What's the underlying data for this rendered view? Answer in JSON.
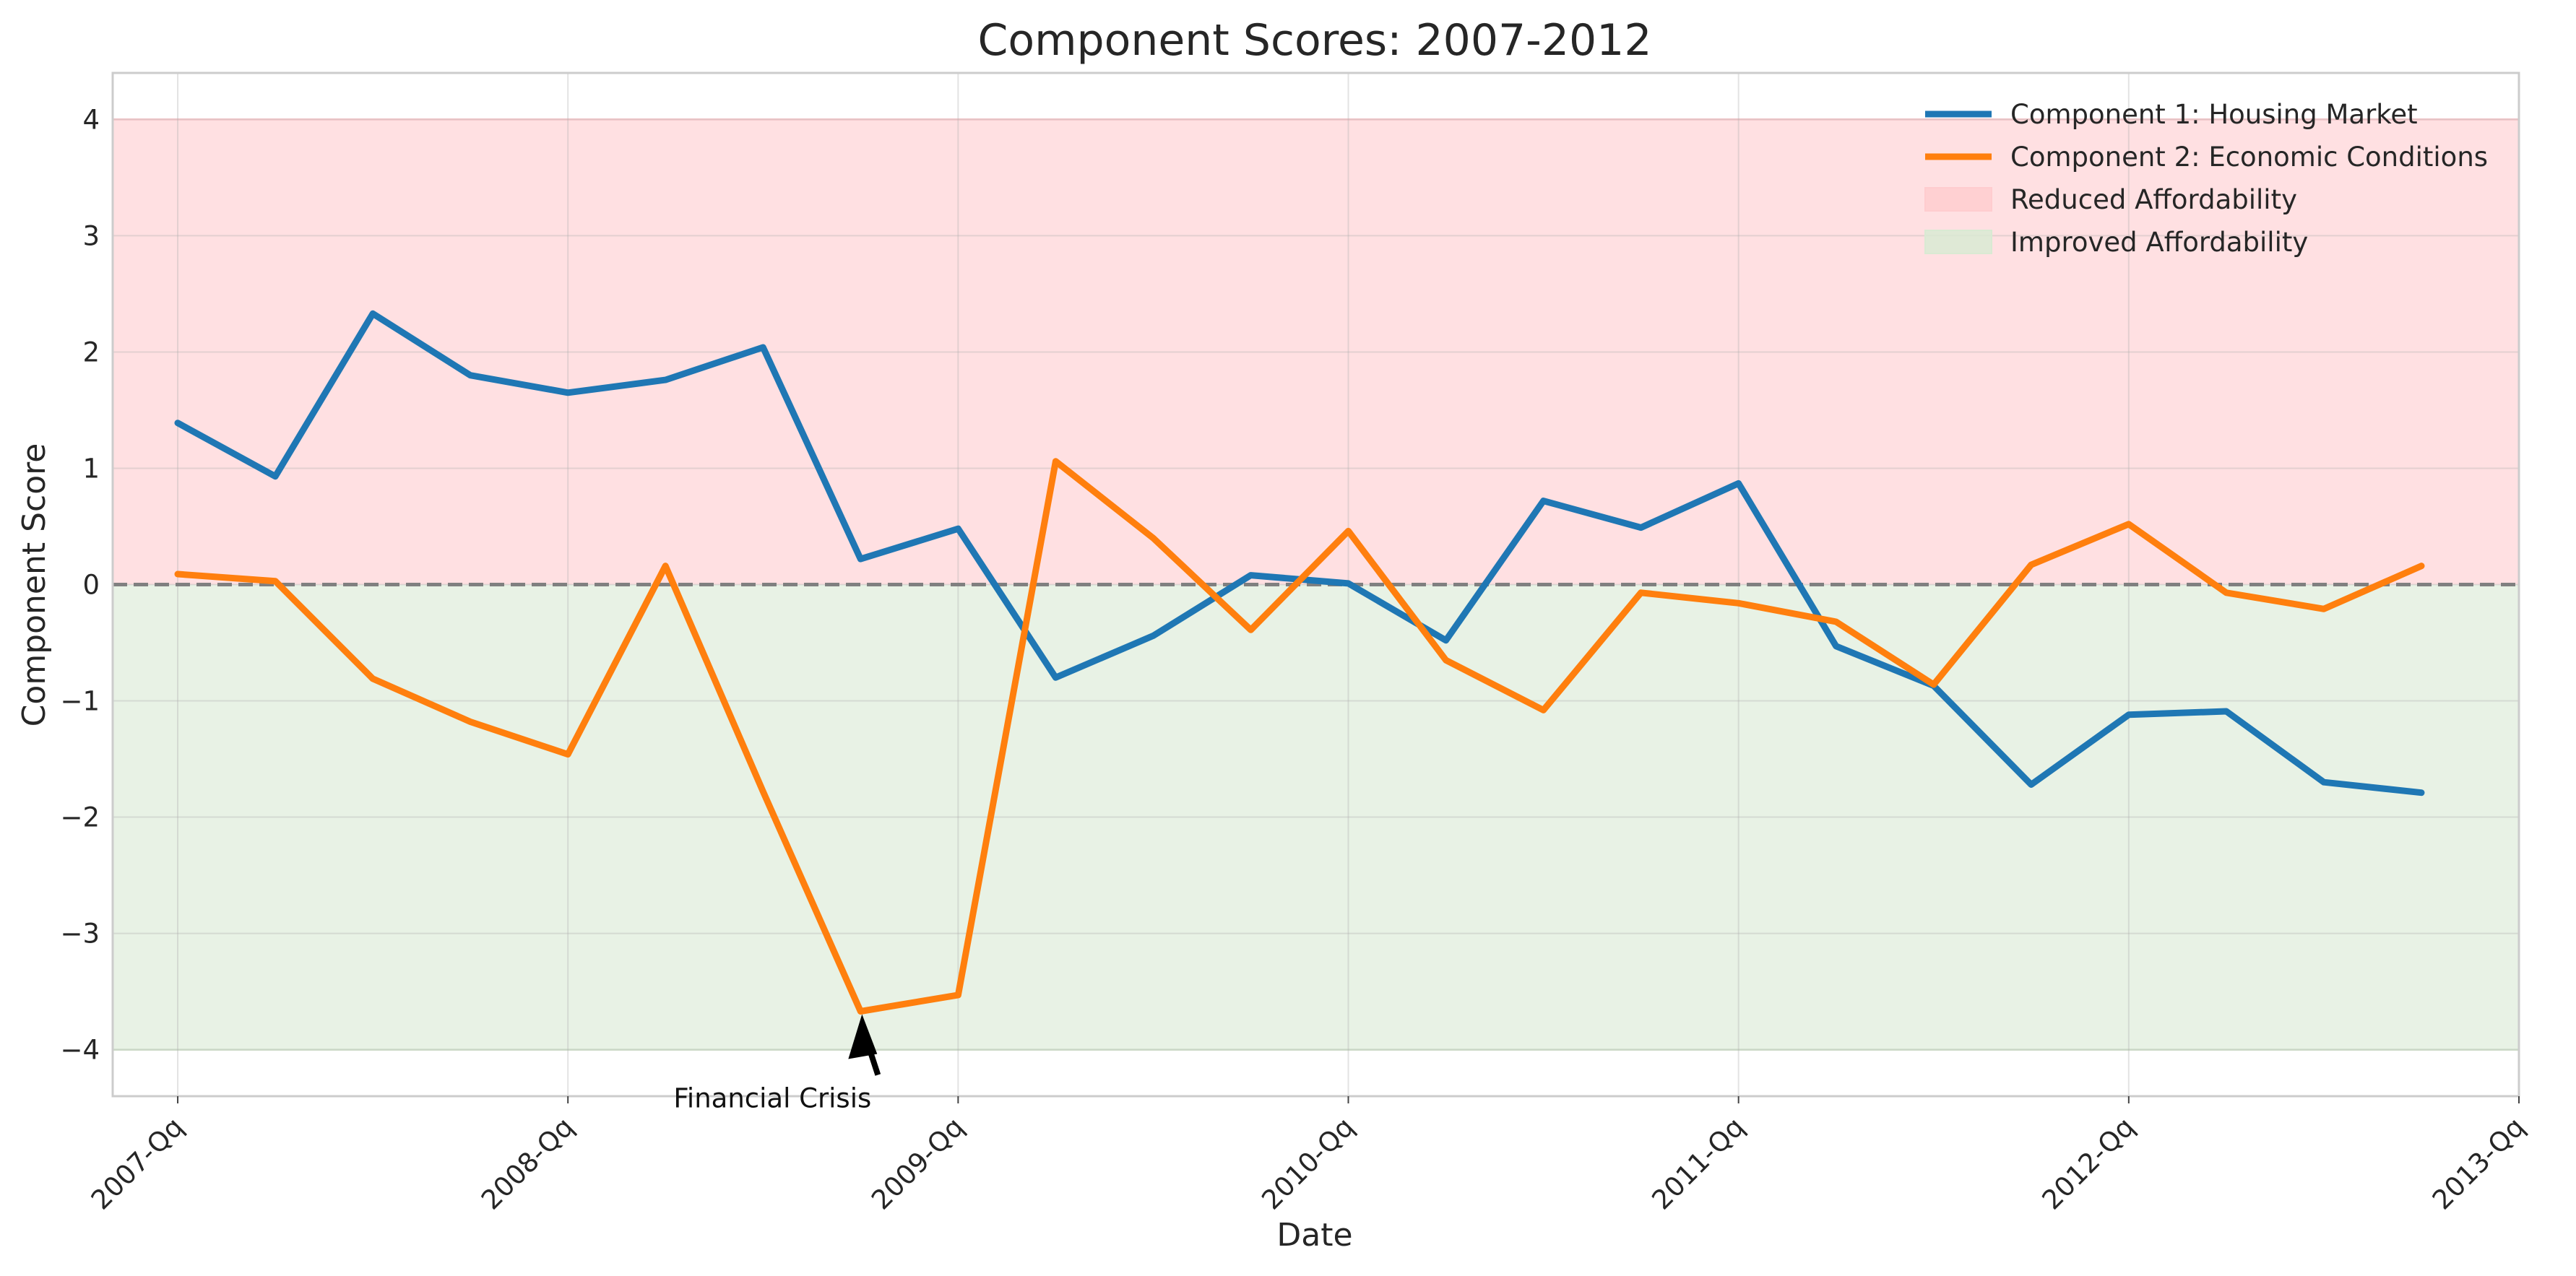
{
  "chart_data": {
    "type": "line",
    "title": "Component Scores: 2007-2012",
    "xlabel": "Date",
    "ylabel": "Component Score",
    "x_ticks": [
      "2007-Qq",
      "2008-Qq",
      "2009-Qq",
      "2010-Qq",
      "2011-Qq",
      "2012-Qq",
      "2013-Qq"
    ],
    "xlim": [
      "2006-11",
      "2013-01"
    ],
    "ylim": [
      -4.4,
      4.4
    ],
    "y_ticks": [
      -4,
      -3,
      -2,
      -1,
      0,
      1,
      2,
      3,
      4
    ],
    "grid": true,
    "legend_position": "top-right",
    "x": [
      "2007-01",
      "2007-04",
      "2007-07",
      "2007-10",
      "2008-01",
      "2008-04",
      "2008-07",
      "2008-10",
      "2009-01",
      "2009-04",
      "2009-07",
      "2009-10",
      "2010-01",
      "2010-04",
      "2010-07",
      "2010-10",
      "2011-01",
      "2011-04",
      "2011-07",
      "2011-10",
      "2012-01",
      "2012-04",
      "2012-07",
      "2012-10"
    ],
    "series": [
      {
        "name": "Component 1: Housing Market",
        "color": "#1f77b4",
        "values": [
          1.39,
          0.93,
          2.33,
          1.8,
          1.65,
          1.76,
          2.04,
          0.22,
          0.48,
          -0.8,
          -0.44,
          0.08,
          0.01,
          -0.48,
          0.72,
          0.49,
          0.87,
          -0.53,
          -0.87,
          -1.72,
          -1.12,
          -1.09,
          -1.7,
          -1.79
        ]
      },
      {
        "name": "Component 2: Economic Conditions",
        "color": "#ff7f0e",
        "values": [
          0.09,
          0.03,
          -0.81,
          -1.18,
          -1.46,
          0.16,
          -1.78,
          -3.67,
          -3.53,
          1.06,
          0.4,
          -0.39,
          0.46,
          -0.65,
          -1.08,
          -0.07,
          -0.16,
          -0.32,
          -0.86,
          0.17,
          0.52,
          -0.07,
          -0.21,
          0.16
        ]
      }
    ],
    "bands": [
      {
        "name": "Reduced Affordability",
        "from": 0,
        "to": 4,
        "color": "#ffcccf"
      },
      {
        "name": "Improved Affordability",
        "from": -4,
        "to": 0,
        "color": "#d9ead3"
      }
    ],
    "reference_line": {
      "y": 0,
      "style": "dashed",
      "color": "#808080"
    },
    "annotation": {
      "text": "Financial Crisis",
      "x": "2008-10",
      "y": -3.67
    }
  }
}
